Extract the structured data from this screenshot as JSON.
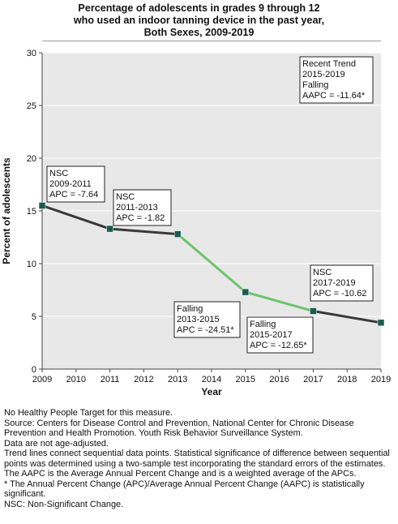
{
  "title_lines": [
    "Percentage of adolescents in grades 9 through 12",
    "who used an indoor tanning device in the past year,",
    "Both Sexes,  2009-2019"
  ],
  "chart_data": {
    "type": "line",
    "xlabel": "Year",
    "ylabel": "Percent of adolescents",
    "xlim": [
      2009,
      2019
    ],
    "ylim": [
      0,
      30
    ],
    "x_ticks": [
      2009,
      2010,
      2011,
      2012,
      2013,
      2014,
      2015,
      2016,
      2017,
      2018,
      2019
    ],
    "y_ticks": [
      0,
      5,
      10,
      15,
      20,
      25,
      30
    ],
    "grid": "horizontal",
    "points": [
      {
        "x": 2009,
        "y": 15.5
      },
      {
        "x": 2011,
        "y": 13.3
      },
      {
        "x": 2013,
        "y": 12.8
      },
      {
        "x": 2015,
        "y": 7.3
      },
      {
        "x": 2017,
        "y": 5.5
      },
      {
        "x": 2019,
        "y": 4.4
      }
    ],
    "segments": [
      {
        "from": 2009,
        "to": 2011,
        "status": "NSC",
        "color": "#3a3a3a"
      },
      {
        "from": 2011,
        "to": 2013,
        "status": "NSC",
        "color": "#3a3a3a"
      },
      {
        "from": 2013,
        "to": 2015,
        "status": "Falling",
        "color": "#6cc46c"
      },
      {
        "from": 2015,
        "to": 2017,
        "status": "Falling",
        "color": "#6cc46c"
      },
      {
        "from": 2017,
        "to": 2019,
        "status": "NSC",
        "color": "#3a3a3a"
      }
    ],
    "marker_color": "#1a5c52",
    "annotations": [
      {
        "lines": [
          "NSC",
          "2009-2011",
          "APC = -7.64"
        ]
      },
      {
        "lines": [
          "NSC",
          "2011-2013",
          "APC = -1.82"
        ]
      },
      {
        "lines": [
          "Falling",
          "2013-2015",
          "APC = -24.51*"
        ]
      },
      {
        "lines": [
          "Falling",
          "2015-2017",
          "APC = -12.65*"
        ]
      },
      {
        "lines": [
          "NSC",
          "2017-2019",
          "APC = -10.62"
        ]
      },
      {
        "lines": [
          "Recent Trend",
          "2015-2019",
          "Falling",
          "AAPC = -11.64*"
        ]
      }
    ]
  },
  "notes": [
    "No Healthy People Target for this measure.",
    "Source: Centers for Disease Control and Prevention, National Center for Chronic Disease Prevention and Health Promotion. Youth Risk Behavior Surveillance System.",
    "Data are not age-adjusted.",
    "Trend lines connect sequential data points. Statistical significance of difference between sequential points was determined using a two-sample test incorporating the standard errors of the estimates.",
    "The AAPC is the Average Annual Percent Change and is a weighted average of the APCs.",
    "* The Annual Percent Change (APC)/Average Annual Percent Change (AAPC) is statistically significant.",
    "NSC: Non-Significant Change."
  ]
}
